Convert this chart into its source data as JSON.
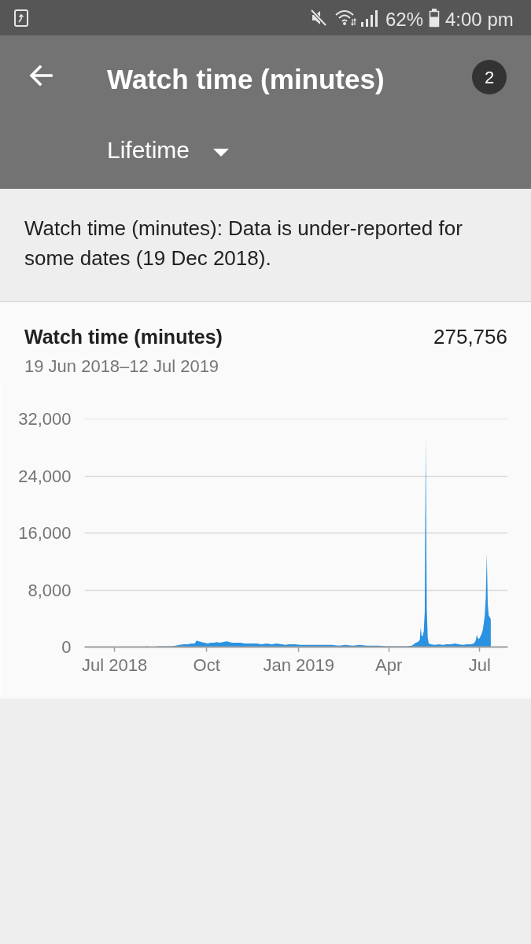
{
  "chart_data": {
    "type": "area",
    "title": "Watch time (minutes)",
    "subtitle": "19 Jun 2018–12 Jul 2019",
    "annotations": [
      "62%",
      "4:00 pm",
      "Watch time (minutes)",
      "2",
      "Lifetime",
      "Watch time (minutes): Data is under-reported for some dates (19 Dec 2018).",
      "275,756"
    ],
    "x": [
      "2018-06-19",
      "2018-07-10",
      "2018-07-30",
      "2018-08-02",
      "2018-08-08",
      "2018-08-14",
      "2018-08-20",
      "2018-08-26",
      "2018-08-31",
      "2018-09-04",
      "2018-09-08",
      "2018-09-12",
      "2018-09-16",
      "2018-09-19",
      "2018-09-21",
      "2018-09-23",
      "2018-09-26",
      "2018-09-29",
      "2018-10-02",
      "2018-10-05",
      "2018-10-08",
      "2018-10-11",
      "2018-10-14",
      "2018-10-17",
      "2018-10-21",
      "2018-10-24",
      "2018-10-27",
      "2018-10-31",
      "2018-11-04",
      "2018-11-08",
      "2018-11-12",
      "2018-11-16",
      "2018-11-20",
      "2018-11-25",
      "2018-11-30",
      "2018-12-05",
      "2018-12-10",
      "2018-12-15",
      "2018-12-19",
      "2018-12-22",
      "2018-12-28",
      "2019-01-03",
      "2019-01-08",
      "2019-01-14",
      "2019-01-20",
      "2019-01-27",
      "2019-02-03",
      "2019-02-10",
      "2019-02-17",
      "2019-02-24",
      "2019-03-03",
      "2019-03-10",
      "2019-03-17",
      "2019-03-22",
      "2019-03-28",
      "2019-04-05",
      "2019-04-12",
      "2019-04-19",
      "2019-04-24",
      "2019-04-26",
      "2019-04-28",
      "2019-04-30",
      "2019-05-02",
      "2019-05-03",
      "2019-05-04",
      "2019-05-05",
      "2019-05-06",
      "2019-05-07",
      "2019-05-08",
      "2019-05-09",
      "2019-05-10",
      "2019-05-11",
      "2019-05-13",
      "2019-05-17",
      "2019-05-21",
      "2019-05-25",
      "2019-05-29",
      "2019-06-02",
      "2019-06-06",
      "2019-06-10",
      "2019-06-14",
      "2019-06-18",
      "2019-06-22",
      "2019-06-25",
      "2019-06-27",
      "2019-06-28",
      "2019-06-29",
      "2019-06-30",
      "2019-07-01",
      "2019-07-02",
      "2019-07-03",
      "2019-07-04",
      "2019-07-05",
      "2019-07-06",
      "2019-07-07",
      "2019-07-08",
      "2019-07-09",
      "2019-07-10",
      "2019-07-11",
      "2019-07-12"
    ],
    "values": [
      0,
      0,
      0,
      100,
      0,
      100,
      100,
      100,
      200,
      300,
      400,
      400,
      500,
      500,
      900,
      800,
      700,
      600,
      500,
      600,
      600,
      700,
      600,
      700,
      800,
      700,
      600,
      600,
      600,
      500,
      500,
      500,
      500,
      400,
      500,
      400,
      500,
      400,
      300,
      400,
      400,
      300,
      300,
      300,
      300,
      300,
      300,
      200,
      300,
      200,
      300,
      200,
      200,
      200,
      100,
      100,
      100,
      100,
      200,
      400,
      600,
      700,
      1000,
      2800,
      1500,
      1600,
      2200,
      5000,
      29400,
      5500,
      1300,
      500,
      400,
      300,
      400,
      300,
      400,
      400,
      500,
      400,
      300,
      400,
      400,
      500,
      900,
      1700,
      1300,
      1100,
      1300,
      1600,
      1900,
      2400,
      3300,
      4500,
      7000,
      13100,
      6000,
      4400,
      4200,
      3900
    ],
    "color": "#2a92e0",
    "xlim": [
      "2018-06-01",
      "2019-07-29"
    ],
    "xticks": [
      {
        "value": "2018-07-01",
        "label": "Jul 2018"
      },
      {
        "value": "2018-10-01",
        "label": "Oct"
      },
      {
        "value": "2019-01-01",
        "label": "Jan 2019"
      },
      {
        "value": "2019-04-01",
        "label": "Apr"
      },
      {
        "value": "2019-07-01",
        "label": "Jul"
      }
    ],
    "ylim": [
      0,
      32000
    ],
    "yticks": [
      0,
      {
        "value": 8000,
        "label": "8,000"
      },
      {
        "value": 16000,
        "label": "16,000"
      },
      {
        "value": 24000,
        "label": "24,000"
      },
      {
        "value": 32000,
        "label": "32,000"
      }
    ],
    "grid": "y"
  }
}
